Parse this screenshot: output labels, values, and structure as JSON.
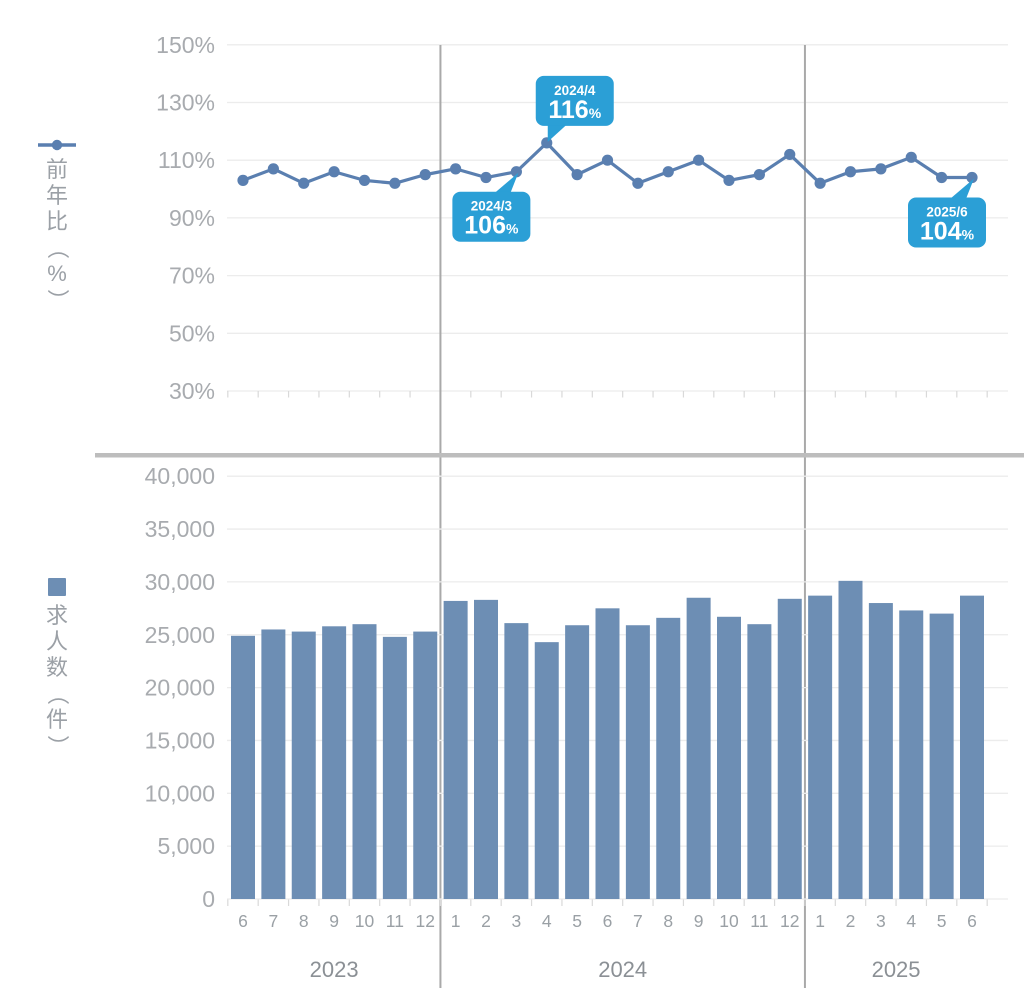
{
  "colors": {
    "line": "#5a7fb0",
    "bar": "#6d8eb4",
    "callout": "#2b9fd6",
    "callout_text": "#ffffff",
    "grid": "#ececec",
    "tick_label": "#a8abaf",
    "month_label": "#9aa0a5",
    "year_label": "#8b9095",
    "divider": "#a9a9a9",
    "separator": "#bdbdbd",
    "axis_tick": "#d9d9d9"
  },
  "legends": {
    "line": {
      "label": "前年比（%）"
    },
    "bar": {
      "label": "求人数（件）"
    }
  },
  "x_axis": {
    "month_labels": [
      "6",
      "7",
      "8",
      "9",
      "10",
      "11",
      "12",
      "1",
      "2",
      "3",
      "4",
      "5",
      "6",
      "7",
      "8",
      "9",
      "10",
      "11",
      "12",
      "1",
      "2",
      "3",
      "4",
      "5",
      "6"
    ],
    "year_groups": [
      {
        "label": "2023",
        "start": 0,
        "end": 6
      },
      {
        "label": "2024",
        "start": 7,
        "end": 18
      },
      {
        "label": "2025",
        "start": 19,
        "end": 24
      }
    ]
  },
  "chart_data": [
    {
      "type": "line",
      "title": "",
      "ylabel": "前年比（%）",
      "ylim": [
        30,
        150
      ],
      "grid": true,
      "legend_position": "left",
      "y_ticks": [
        150,
        130,
        110,
        90,
        70,
        50,
        30
      ],
      "y_tick_labels": [
        "150%",
        "130%",
        "110%",
        "90%",
        "70%",
        "50%",
        "30%"
      ],
      "categories": [
        "2023/6",
        "2023/7",
        "2023/8",
        "2023/9",
        "2023/10",
        "2023/11",
        "2023/12",
        "2024/1",
        "2024/2",
        "2024/3",
        "2024/4",
        "2024/5",
        "2024/6",
        "2024/7",
        "2024/8",
        "2024/9",
        "2024/10",
        "2024/11",
        "2024/12",
        "2025/1",
        "2025/2",
        "2025/3",
        "2025/4",
        "2025/5",
        "2025/6"
      ],
      "values": [
        103,
        107,
        102,
        106,
        103,
        102,
        105,
        107,
        104,
        106,
        116,
        105,
        110,
        102,
        106,
        110,
        103,
        105,
        112,
        102,
        106,
        107,
        111,
        104,
        104
      ],
      "annotations": [
        {
          "label": "2024/3",
          "value": "106",
          "suffix": "%",
          "category": "2024/3",
          "placement": "below-left"
        },
        {
          "label": "2024/4",
          "value": "116",
          "suffix": "%",
          "category": "2024/4",
          "placement": "above-right"
        },
        {
          "label": "2025/6",
          "value": "104",
          "suffix": "%",
          "category": "2025/6",
          "placement": "below-left"
        }
      ]
    },
    {
      "type": "bar",
      "title": "",
      "ylabel": "求人数（件）",
      "ylim": [
        0,
        40000
      ],
      "grid": true,
      "legend_position": "left",
      "y_ticks": [
        40000,
        35000,
        30000,
        25000,
        20000,
        15000,
        10000,
        5000,
        0
      ],
      "y_tick_labels": [
        "40,000",
        "35,000",
        "30,000",
        "25,000",
        "20,000",
        "15,000",
        "10,000",
        "5,000",
        "0"
      ],
      "categories": [
        "2023/6",
        "2023/7",
        "2023/8",
        "2023/9",
        "2023/10",
        "2023/11",
        "2023/12",
        "2024/1",
        "2024/2",
        "2024/3",
        "2024/4",
        "2024/5",
        "2024/6",
        "2024/7",
        "2024/8",
        "2024/9",
        "2024/10",
        "2024/11",
        "2024/12",
        "2025/1",
        "2025/2",
        "2025/3",
        "2025/4",
        "2025/5",
        "2025/6"
      ],
      "values": [
        24900,
        25500,
        25300,
        25800,
        26000,
        24800,
        25300,
        28200,
        28300,
        26100,
        24300,
        25900,
        27500,
        25900,
        26600,
        28500,
        26700,
        26000,
        28400,
        28700,
        30100,
        28000,
        27300,
        27000,
        28700
      ]
    }
  ]
}
